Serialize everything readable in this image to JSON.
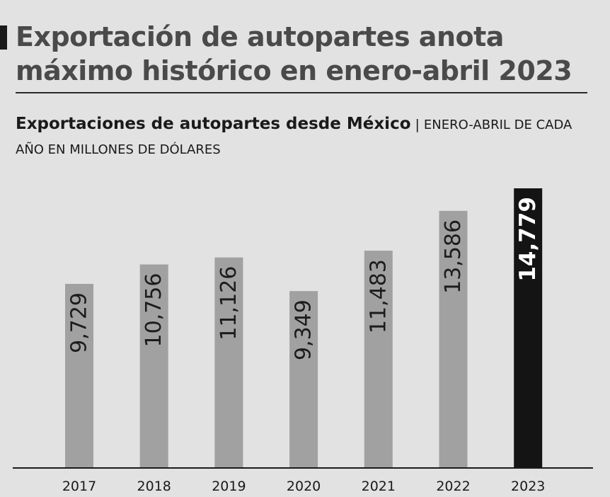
{
  "headline": "Exportación de autopartes anota máximo histórico en enero-abril 2023",
  "chart_data": {
    "type": "bar",
    "title": "Exportaciones de autopartes desde México",
    "subtitle_separator": "|",
    "subtitle": "ENERO-ABRIL DE CADA AÑO EN MILLONES DE DÓLARES",
    "categories": [
      "2017",
      "2018",
      "2019",
      "2020",
      "2021",
      "2022",
      "2023"
    ],
    "values": [
      9729,
      10756,
      11126,
      9349,
      11483,
      13586,
      14779
    ],
    "value_labels": [
      "9,729",
      "10,756",
      "11,126",
      "9,349",
      "11,483",
      "13,586",
      "14,779"
    ],
    "highlight_index": 6,
    "ylim": [
      0,
      14779
    ],
    "xlabel": "",
    "ylabel": "",
    "colors": {
      "bar": "#a1a1a1",
      "highlight": "#141414",
      "label": "#1c1c1c",
      "highlight_label": "#ffffff",
      "axis": "#1a1a1a"
    }
  }
}
